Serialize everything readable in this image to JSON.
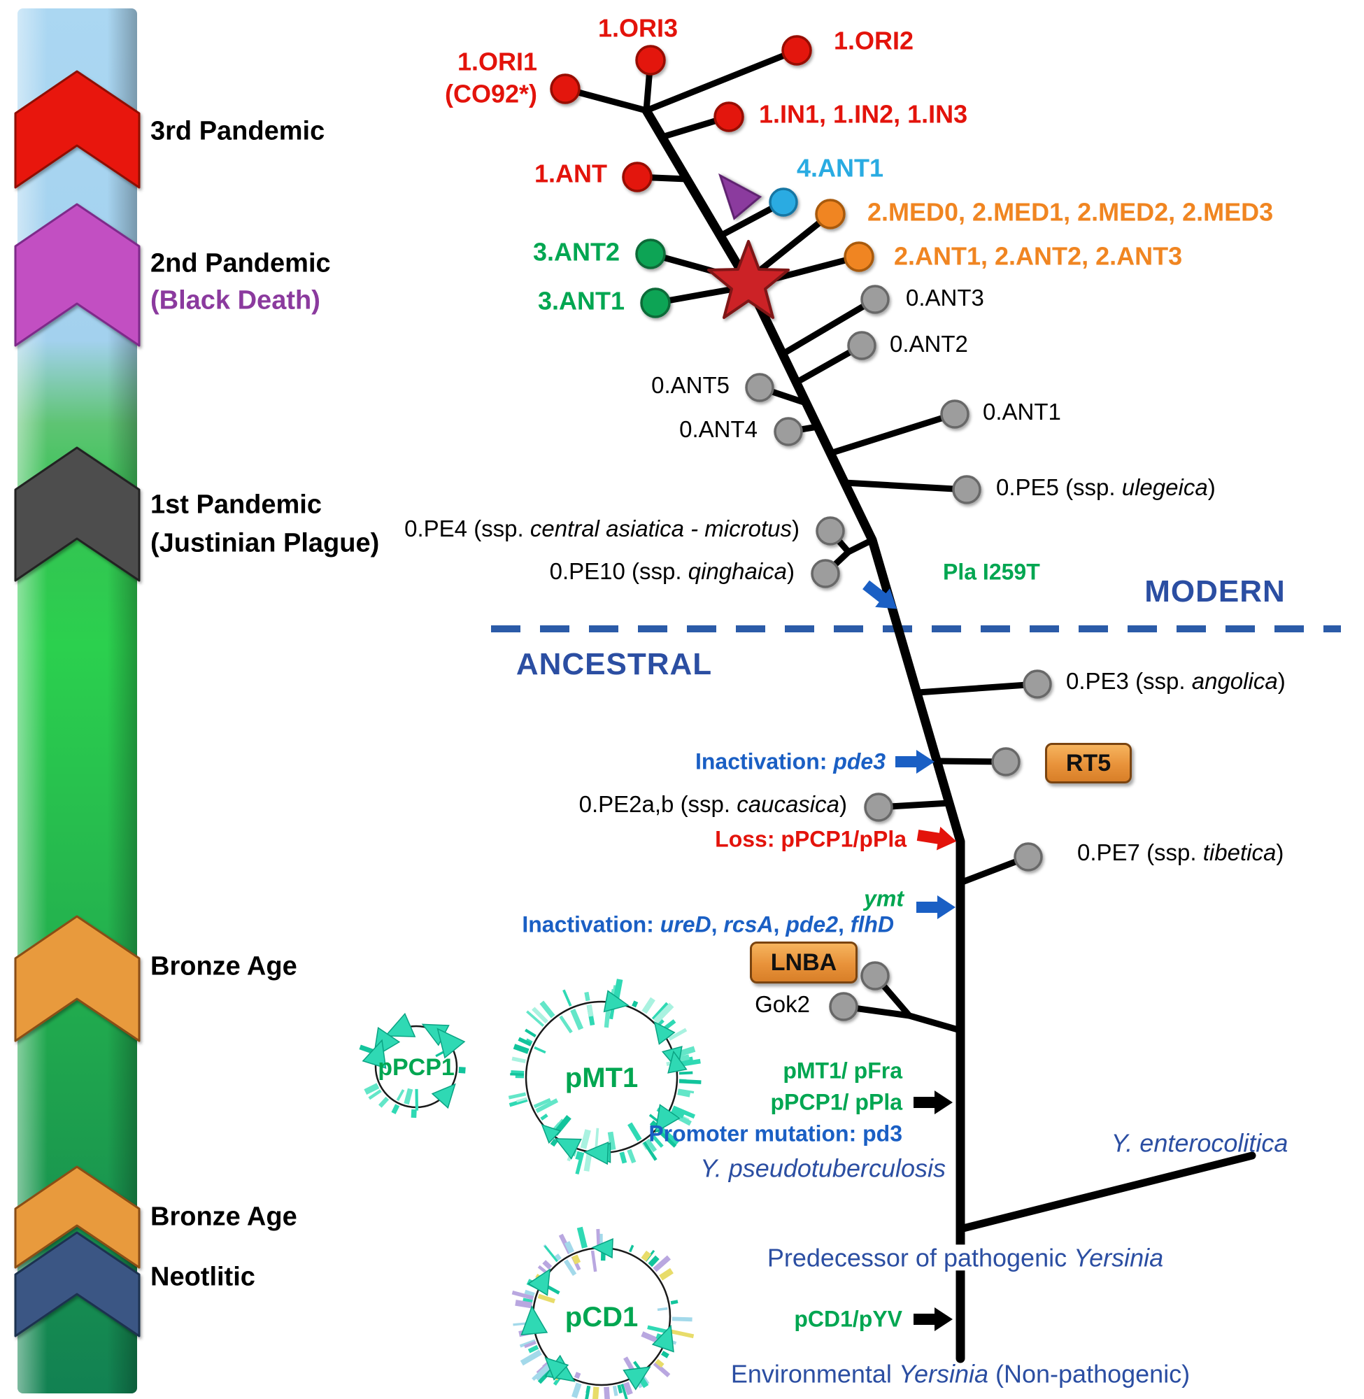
{
  "figure": {
    "regions": {
      "modern": "MODERN",
      "ancestral": "ANCESTRAL"
    }
  },
  "colors": {
    "red": "#e3130b",
    "orange": "#f08521",
    "green": "#00a651",
    "skyblue": "#29abe2",
    "black": "#000000",
    "navy": "#2b4ea2",
    "blue": "#1a5fc4",
    "purple": "#8b3a9e"
  },
  "node_colors": {
    "red": {
      "fill": "#e3130b",
      "stroke": "#970a04"
    },
    "orange": {
      "fill": "#f08521",
      "stroke": "#a85a0a"
    },
    "green": {
      "fill": "#0da455",
      "stroke": "#076b37"
    },
    "skyblue": {
      "fill": "#29abe2",
      "stroke": "#1476a3"
    },
    "gray": {
      "fill": "#9d9d9d",
      "stroke": "#676767"
    }
  },
  "timeline": {
    "eras": [
      {
        "id": "era-3rd-pandemic",
        "label": "3rd Pandemic",
        "sublabel": "",
        "chevron": "red"
      },
      {
        "id": "era-2nd-pandemic",
        "label": "2nd Pandemic",
        "sublabel": "(Black Death)",
        "chevron": "magenta"
      },
      {
        "id": "era-1st-pandemic",
        "label": "1st Pandemic",
        "sublabel": "(Justinian Plague)",
        "chevron": "dark-gray"
      },
      {
        "id": "era-bronze-age-1",
        "label": "Bronze Age",
        "sublabel": "",
        "chevron": "orange"
      },
      {
        "id": "era-bronze-age-2",
        "label": "Bronze Age",
        "sublabel": "",
        "chevron": "orange"
      },
      {
        "id": "era-neolithic",
        "label": "Neotlitic",
        "sublabel": "",
        "chevron": "navy"
      }
    ]
  },
  "tree": {
    "nodes": [
      {
        "id": "ori3",
        "color": "red"
      },
      {
        "id": "ori2",
        "color": "red"
      },
      {
        "id": "ori1",
        "color": "red"
      },
      {
        "id": "in123",
        "color": "red"
      },
      {
        "id": "ant1red",
        "color": "red"
      },
      {
        "id": "ant4_1",
        "color": "skyblue"
      },
      {
        "id": "med",
        "color": "orange"
      },
      {
        "id": "ant123o",
        "color": "orange"
      },
      {
        "id": "ant2g",
        "color": "green"
      },
      {
        "id": "ant1g",
        "color": "green"
      },
      {
        "id": "a3",
        "color": "gray"
      },
      {
        "id": "a2",
        "color": "gray"
      },
      {
        "id": "a5",
        "color": "gray"
      },
      {
        "id": "a1",
        "color": "gray"
      },
      {
        "id": "a4",
        "color": "gray"
      },
      {
        "id": "pe5",
        "color": "gray"
      },
      {
        "id": "pe4",
        "color": "gray"
      },
      {
        "id": "pe10",
        "color": "gray"
      },
      {
        "id": "pe3",
        "color": "gray"
      },
      {
        "id": "rt5n",
        "color": "gray"
      },
      {
        "id": "pe2",
        "color": "gray"
      },
      {
        "id": "pe7",
        "color": "gray"
      },
      {
        "id": "lnban",
        "color": "gray"
      },
      {
        "id": "gok2n",
        "color": "gray"
      }
    ],
    "boxes": [
      {
        "id": "rt5",
        "label": "RT5"
      },
      {
        "id": "lnba",
        "label": "LNBA"
      }
    ]
  },
  "texts": [
    {
      "id": "ori3",
      "color": "red",
      "segments": [
        {
          "t": "1.ORI3"
        }
      ]
    },
    {
      "id": "ori2",
      "color": "red",
      "segments": [
        {
          "t": "1.ORI2"
        }
      ]
    },
    {
      "id": "ori1a",
      "color": "red",
      "segments": [
        {
          "t": "1.ORI1"
        }
      ]
    },
    {
      "id": "ori1b",
      "color": "red",
      "segments": [
        {
          "t": "(CO92*)"
        }
      ]
    },
    {
      "id": "in123",
      "color": "red",
      "segments": [
        {
          "t": "1.IN1, 1.IN2, 1.IN3"
        }
      ]
    },
    {
      "id": "ant1red",
      "color": "red",
      "segments": [
        {
          "t": "1.ANT"
        }
      ]
    },
    {
      "id": "ant4_1",
      "color": "skyblue",
      "segments": [
        {
          "t": "4.ANT1"
        }
      ]
    },
    {
      "id": "med",
      "color": "orange",
      "segments": [
        {
          "t": "2.MED0, 2.MED1, 2.MED2, 2.MED3"
        }
      ]
    },
    {
      "id": "ant123o",
      "color": "orange",
      "segments": [
        {
          "t": "2.ANT1, 2.ANT2, 2.ANT3"
        }
      ]
    },
    {
      "id": "ant2g",
      "color": "green",
      "segments": [
        {
          "t": "3.ANT2"
        }
      ]
    },
    {
      "id": "ant1g",
      "color": "green",
      "segments": [
        {
          "t": "3.ANT1"
        }
      ]
    },
    {
      "id": "a3",
      "color": "black",
      "segments": [
        {
          "t": "0.ANT3"
        }
      ]
    },
    {
      "id": "a2",
      "color": "black",
      "segments": [
        {
          "t": "0.ANT2"
        }
      ]
    },
    {
      "id": "a5",
      "color": "black",
      "segments": [
        {
          "t": "0.ANT5"
        }
      ]
    },
    {
      "id": "a1",
      "color": "black",
      "segments": [
        {
          "t": "0.ANT1"
        }
      ]
    },
    {
      "id": "a4",
      "color": "black",
      "segments": [
        {
          "t": "0.ANT4"
        }
      ]
    },
    {
      "id": "pe5",
      "color": "black",
      "segments": [
        {
          "t": "0.PE5 (ssp. "
        },
        {
          "t": "ulegeica",
          "i": 1
        },
        {
          "t": ")"
        }
      ]
    },
    {
      "id": "pe4",
      "color": "black",
      "segments": [
        {
          "t": "0.PE4 (ssp. "
        },
        {
          "t": "central asiatica - microtus",
          "i": 1
        },
        {
          "t": ")"
        }
      ]
    },
    {
      "id": "pe10",
      "color": "black",
      "segments": [
        {
          "t": "0.PE10 (ssp. "
        },
        {
          "t": "qinghaica",
          "i": 1
        },
        {
          "t": ")"
        }
      ]
    },
    {
      "id": "pe3",
      "color": "black",
      "segments": [
        {
          "t": "0.PE3 (ssp. "
        },
        {
          "t": "angolica",
          "i": 1
        },
        {
          "t": ")"
        }
      ]
    },
    {
      "id": "pe2",
      "color": "black",
      "segments": [
        {
          "t": "0.PE2a,b (ssp. "
        },
        {
          "t": "caucasica",
          "i": 1
        },
        {
          "t": ")"
        }
      ]
    },
    {
      "id": "pe7",
      "color": "black",
      "segments": [
        {
          "t": "0.PE7 (ssp. "
        },
        {
          "t": "tibetica",
          "i": 1
        },
        {
          "t": ")"
        }
      ]
    },
    {
      "id": "gok2",
      "color": "black",
      "segments": [
        {
          "t": "Gok2"
        }
      ]
    },
    {
      "id": "pla",
      "color": "green",
      "segments": [
        {
          "t": "Pla I259T"
        }
      ]
    },
    {
      "id": "pde3",
      "color": "blue",
      "segments": [
        {
          "t": "Inactivation: "
        },
        {
          "t": "pde3",
          "i": 1
        }
      ]
    },
    {
      "id": "loss",
      "color": "red",
      "segments": [
        {
          "t": "Loss: pPCP1/pPla"
        }
      ]
    },
    {
      "id": "ymt",
      "color": "green",
      "segments": [
        {
          "t": "ymt",
          "i": 1
        }
      ]
    },
    {
      "id": "inact2",
      "color": "blue",
      "segments": [
        {
          "t": "Inactivation: "
        },
        {
          "t": "ureD",
          "i": 1
        },
        {
          "t": ", "
        },
        {
          "t": "rcsA",
          "i": 1
        },
        {
          "t": ", "
        },
        {
          "t": "pde2",
          "i": 1
        },
        {
          "t": ", "
        },
        {
          "t": "flhD",
          "i": 1
        }
      ]
    },
    {
      "id": "pmt1pfra",
      "color": "green",
      "segments": [
        {
          "t": "pMT1/ pFra"
        }
      ]
    },
    {
      "id": "ppcp1ppla",
      "color": "green",
      "segments": [
        {
          "t": "pPCP1/ pPla"
        }
      ]
    },
    {
      "id": "promoter",
      "color": "blue",
      "segments": [
        {
          "t": "Promoter mutation: pd3"
        }
      ]
    },
    {
      "id": "ypseudo",
      "color": "navy",
      "segments": [
        {
          "t": "Y. pseudotuberculosis",
          "i": 1
        }
      ]
    },
    {
      "id": "yentero",
      "color": "navy",
      "segments": [
        {
          "t": "Y. enterocolitica",
          "i": 1
        }
      ]
    },
    {
      "id": "predecessor",
      "color": "navy",
      "segments": [
        {
          "t": "Predecessor of pathogenic "
        },
        {
          "t": "Yersinia",
          "i": 1
        }
      ]
    },
    {
      "id": "pcd1pyv",
      "color": "green",
      "segments": [
        {
          "t": "pCD1/pYV"
        }
      ]
    },
    {
      "id": "environ",
      "color": "navy",
      "segments": [
        {
          "t": "Environmental "
        },
        {
          "t": "Yersinia",
          "i": 1
        },
        {
          "t": " (Non-pathogenic)"
        }
      ]
    }
  ],
  "arrows": [
    {
      "id": "pla-arrow",
      "color": "blue"
    },
    {
      "id": "pde3-arrow",
      "color": "blue"
    },
    {
      "id": "loss-arrow",
      "color": "red"
    },
    {
      "id": "ymt-arrow",
      "color": "blue"
    },
    {
      "id": "pmt1-arrow",
      "color": "black"
    },
    {
      "id": "pcd1-arrow",
      "color": "black"
    }
  ],
  "plasmids": [
    {
      "id": "ppcp1",
      "name": "pPCP1",
      "palette": [
        "#2fd9b4",
        "#12c49c",
        "#63e6c8"
      ]
    },
    {
      "id": "pmt1",
      "name": "pMT1",
      "palette": [
        "#2fd9b4",
        "#12c49c",
        "#63e6c8",
        "#a9f2e0"
      ]
    },
    {
      "id": "pcd1",
      "name": "pCD1",
      "palette": [
        "#2fd9b4",
        "#12c49c",
        "#b9a7e0",
        "#e8dc6a",
        "#a3d9ea"
      ]
    }
  ]
}
